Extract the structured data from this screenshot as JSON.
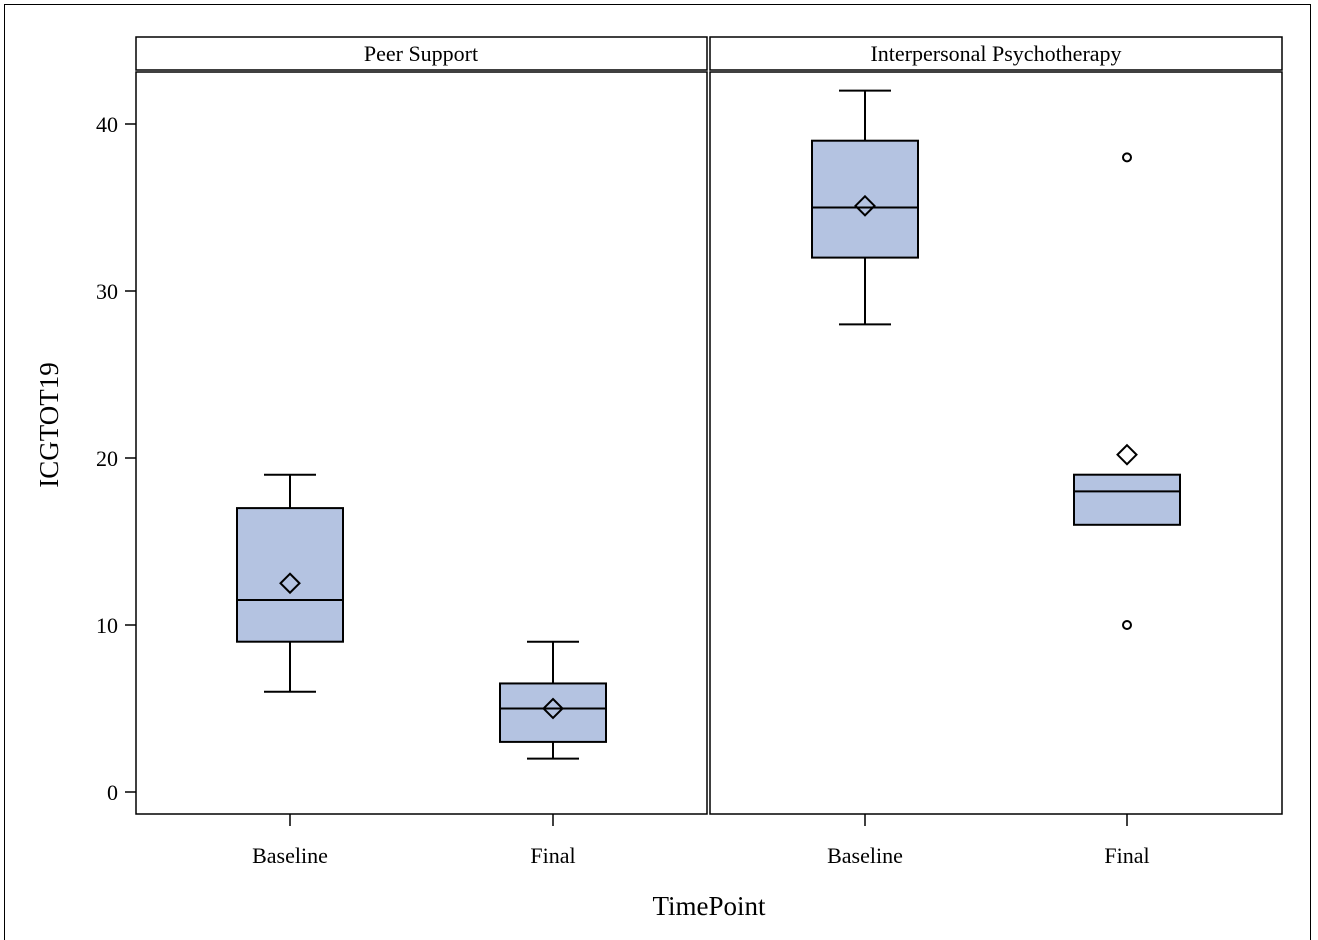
{
  "chart_data": {
    "type": "boxplot",
    "xlabel": "TimePoint",
    "ylabel": "ICGTOT19",
    "ylim": [
      -1.4,
      44
    ],
    "yticks": [
      0,
      10,
      20,
      30,
      40
    ],
    "grid": false,
    "colors": {
      "box_fill": "#b4c3e1",
      "stroke": "#000000",
      "background": "#ffffff"
    },
    "panels": [
      {
        "title": "Peer Support",
        "categories": [
          "Baseline",
          "Final"
        ],
        "boxes": [
          {
            "category": "Baseline",
            "whisker_low": 6,
            "q1": 9,
            "median": 11.5,
            "q3": 17,
            "whisker_high": 19,
            "mean": 12.5,
            "outliers": []
          },
          {
            "category": "Final",
            "whisker_low": 2,
            "q1": 3,
            "median": 5,
            "q3": 6.5,
            "whisker_high": 9,
            "mean": 5,
            "outliers": []
          }
        ]
      },
      {
        "title": "Interpersonal Psychotherapy",
        "categories": [
          "Baseline",
          "Final"
        ],
        "boxes": [
          {
            "category": "Baseline",
            "whisker_low": 28,
            "q1": 32,
            "median": 35,
            "q3": 39,
            "whisker_high": 42,
            "mean": 35.1,
            "outliers": []
          },
          {
            "category": "Final",
            "whisker_low": 16,
            "q1": 16,
            "median": 18,
            "q3": 19,
            "whisker_high": 19,
            "mean": 20.2,
            "outliers": [
              10,
              38
            ]
          }
        ]
      }
    ]
  }
}
